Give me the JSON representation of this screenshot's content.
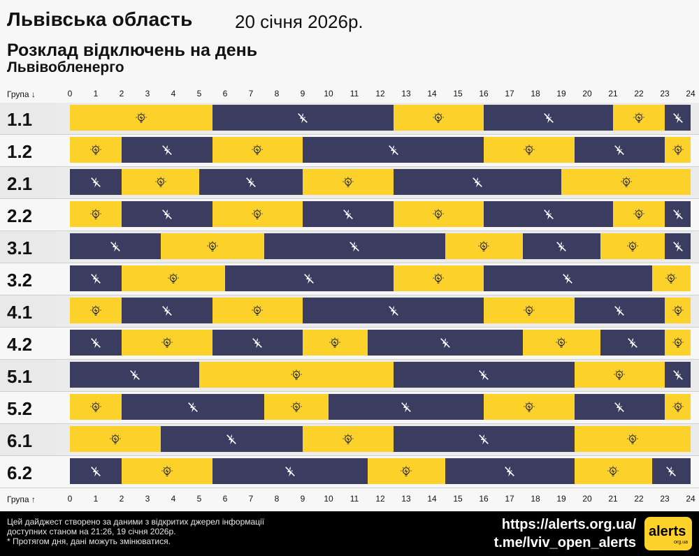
{
  "header": {
    "region": "Львівська область",
    "date": "20 січня 2026р.",
    "subtitle": "Розклад відключень на день",
    "provider": "Львівобленерго"
  },
  "axis": {
    "top_label": "Група ↓",
    "bottom_label": "Група ↑",
    "ticks": [
      "0",
      "1",
      "2",
      "3",
      "4",
      "5",
      "6",
      "7",
      "8",
      "9",
      "10",
      "11",
      "12",
      "13",
      "14",
      "15",
      "16",
      "17",
      "18",
      "19",
      "20",
      "21",
      "22",
      "23",
      "24"
    ]
  },
  "legend": {
    "on_icon": "bulb-icon",
    "off_icon": "no-power-icon",
    "colors": {
      "power_on": "#fcd12a",
      "power_off": "#3a3d60"
    }
  },
  "groups": [
    {
      "name": "1.1",
      "outages": [
        [
          5.5,
          12.5
        ],
        [
          16,
          21
        ],
        [
          23,
          24
        ]
      ]
    },
    {
      "name": "1.2",
      "outages": [
        [
          2,
          5.5
        ],
        [
          9,
          16
        ],
        [
          19.5,
          23
        ]
      ]
    },
    {
      "name": "2.1",
      "outages": [
        [
          0,
          2
        ],
        [
          5,
          9
        ],
        [
          12.5,
          19
        ]
      ]
    },
    {
      "name": "2.2",
      "outages": [
        [
          2,
          5.5
        ],
        [
          9,
          12.5
        ],
        [
          16,
          21
        ],
        [
          23,
          24
        ]
      ]
    },
    {
      "name": "3.1",
      "outages": [
        [
          0,
          3.5
        ],
        [
          7.5,
          14.5
        ],
        [
          17.5,
          20.5
        ],
        [
          23,
          24
        ]
      ]
    },
    {
      "name": "3.2",
      "outages": [
        [
          0,
          2
        ],
        [
          6,
          12.5
        ],
        [
          16,
          22.5
        ]
      ]
    },
    {
      "name": "4.1",
      "outages": [
        [
          2,
          5.5
        ],
        [
          9,
          16
        ],
        [
          19.5,
          23
        ]
      ]
    },
    {
      "name": "4.2",
      "outages": [
        [
          0,
          2
        ],
        [
          5.5,
          9
        ],
        [
          11.5,
          17.5
        ],
        [
          20.5,
          23
        ]
      ]
    },
    {
      "name": "5.1",
      "outages": [
        [
          0,
          5
        ],
        [
          12.5,
          19.5
        ],
        [
          23,
          24
        ]
      ]
    },
    {
      "name": "5.2",
      "outages": [
        [
          2,
          7.5
        ],
        [
          10,
          16
        ],
        [
          19.5,
          23
        ]
      ]
    },
    {
      "name": "6.1",
      "outages": [
        [
          3.5,
          9
        ],
        [
          12.5,
          19.5
        ]
      ]
    },
    {
      "name": "6.2",
      "outages": [
        [
          0,
          2
        ],
        [
          5.5,
          11.5
        ],
        [
          14.5,
          19.5
        ],
        [
          22.5,
          24
        ]
      ]
    }
  ],
  "footer": {
    "note_line1": "Цей дайджест створено за даними з відкритих джерел інформації",
    "note_line2": "доступних станом на 21:26, 19 січня 2026р.",
    "note_line3": "* Протягом дня, дані можуть змінюватися.",
    "link1": "https://alerts.org.ua/",
    "link2": "t.me/lviv_open_alerts",
    "logo_text": "alerts",
    "logo_sub": "org.ua"
  }
}
